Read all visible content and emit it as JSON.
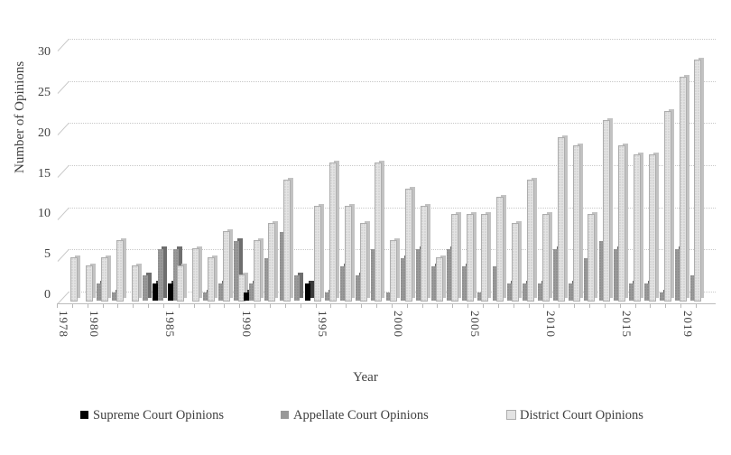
{
  "chart_data": {
    "type": "bar",
    "style": "3d-clustered-column",
    "title": "",
    "xlabel": "Year",
    "ylabel": "Number of Opinions",
    "grid": true,
    "legend_position": "bottom",
    "ylim": [
      0,
      30
    ],
    "y_ticks": [
      0,
      5,
      10,
      15,
      20,
      25,
      30
    ],
    "x_tick_labels": [
      "1978",
      "1980",
      "1985",
      "1990",
      "1995",
      "2000",
      "2005",
      "2010",
      "2015",
      "2019"
    ],
    "categories": [
      1978,
      1979,
      1980,
      1981,
      1982,
      1983,
      1984,
      1985,
      1986,
      1987,
      1988,
      1989,
      1990,
      1991,
      1992,
      1993,
      1994,
      1995,
      1996,
      1997,
      1998,
      1999,
      2000,
      2001,
      2002,
      2003,
      2004,
      2005,
      2006,
      2007,
      2008,
      2009,
      2010,
      2011,
      2012,
      2013,
      2014,
      2015,
      2016,
      2017,
      2018,
      2019
    ],
    "series": [
      {
        "name": "Supreme Court Opinions",
        "color": "#000000",
        "side_color": "#3a3a3a",
        "values": [
          0,
          0,
          0,
          0,
          0,
          0,
          2,
          2,
          0,
          0,
          0,
          0,
          1,
          0,
          0,
          0,
          2,
          0,
          0,
          0,
          0,
          0,
          0,
          0,
          0,
          0,
          0,
          0,
          0,
          0,
          0,
          0,
          0,
          0,
          0,
          0,
          0,
          0,
          0,
          0,
          0,
          0
        ]
      },
      {
        "name": "Appellate Court Opinions",
        "color": "#999999",
        "side_color": "#6e6e6e",
        "values": [
          0,
          0,
          2,
          1,
          0,
          3,
          6,
          6,
          0,
          1,
          2,
          7,
          2,
          5,
          8,
          3,
          0,
          1,
          4,
          3,
          6,
          1,
          5,
          6,
          4,
          6,
          4,
          1,
          4,
          2,
          2,
          2,
          6,
          2,
          5,
          7,
          6,
          2,
          2,
          1,
          6,
          3
        ]
      },
      {
        "name": "District Court Opinions",
        "color": "#e3e3e3",
        "side_color": "#c2c2c2",
        "values": [
          5,
          4,
          5,
          7,
          4,
          0,
          0,
          4,
          6,
          5,
          8,
          3,
          7,
          9,
          14,
          0,
          11,
          16,
          11,
          9,
          16,
          7,
          13,
          11,
          5,
          10,
          10,
          10,
          12,
          9,
          14,
          10,
          19,
          18,
          10,
          21,
          18,
          17,
          17,
          22,
          26,
          28
        ]
      }
    ]
  }
}
